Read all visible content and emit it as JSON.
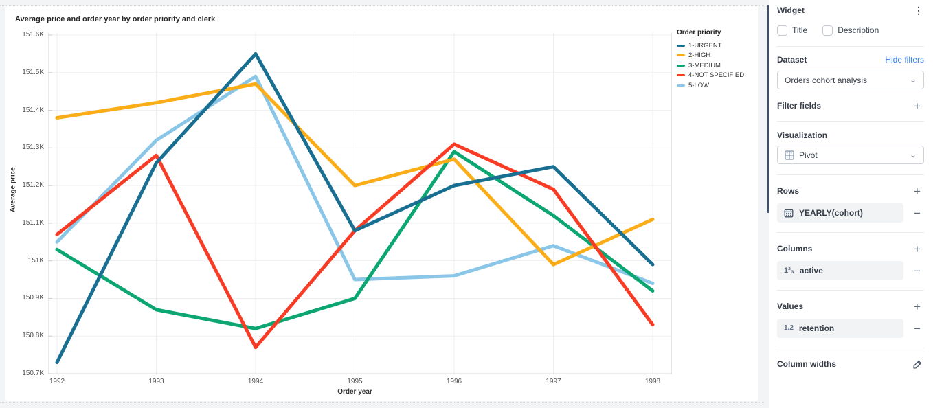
{
  "chart_data": {
    "type": "line",
    "title": "Average price and order year by order priority and clerk",
    "xlabel": "Order year",
    "ylabel": "Average price",
    "legend_title": "Order priority",
    "x": [
      1992,
      1993,
      1994,
      1995,
      1996,
      1997,
      1998
    ],
    "ylim": [
      150.7,
      151.6
    ],
    "y_tick_step": 0.1,
    "y_unit": "K",
    "grid": true,
    "legend_position": "top-right",
    "series": [
      {
        "name": "1-URGENT",
        "color": "#196f92",
        "values": [
          150.73,
          151.26,
          151.55,
          151.08,
          151.2,
          151.25,
          150.99
        ]
      },
      {
        "name": "2-HIGH",
        "color": "#fbad17",
        "values": [
          151.38,
          151.42,
          151.47,
          151.2,
          151.27,
          150.99,
          151.11
        ]
      },
      {
        "name": "3-MEDIUM",
        "color": "#0ba671",
        "values": [
          151.03,
          150.87,
          150.82,
          150.9,
          151.29,
          151.12,
          150.92
        ]
      },
      {
        "name": "4-NOT SPECIFIED",
        "color": "#f83b24",
        "values": [
          151.07,
          151.28,
          150.77,
          151.08,
          151.31,
          151.19,
          150.83
        ]
      },
      {
        "name": "5-LOW",
        "color": "#8ac6e8",
        "values": [
          151.05,
          151.32,
          151.49,
          150.95,
          150.96,
          151.04,
          150.94
        ]
      }
    ],
    "draw_order": [
      4,
      2,
      1,
      3,
      0
    ]
  },
  "panel": {
    "title": "Widget",
    "checkboxes": [
      {
        "label": "Title",
        "checked": false
      },
      {
        "label": "Description",
        "checked": false
      }
    ],
    "dataset": {
      "label": "Dataset",
      "link": "Hide filters",
      "selected": "Orders cohort analysis"
    },
    "filter_fields": {
      "label": "Filter fields"
    },
    "visualization": {
      "label": "Visualization",
      "selected": "Pivot"
    },
    "rows": {
      "label": "Rows",
      "items": [
        {
          "label": "YEARLY(cohort)"
        }
      ]
    },
    "columns": {
      "label": "Columns",
      "items": [
        {
          "label": "active"
        }
      ]
    },
    "values": {
      "label": "Values",
      "items": [
        {
          "label": "retention"
        }
      ]
    },
    "column_widths": {
      "label": "Column widths"
    }
  },
  "icons": {
    "plus": "+",
    "minus": "−",
    "kebab": "⋮",
    "chevron_down": "⌄",
    "numeric_123": "1²₃",
    "numeric_12": "1.2"
  },
  "colors": {
    "link_blue": "#3b82ec",
    "scrollbar": "#414e63",
    "pill_bg": "#f1f3f5"
  }
}
